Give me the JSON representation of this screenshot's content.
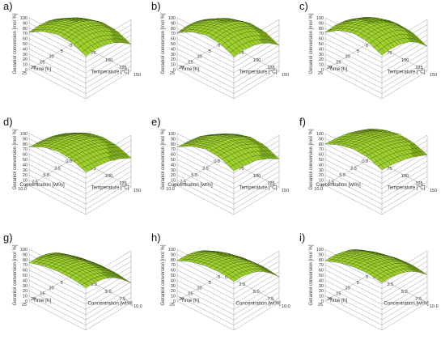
{
  "colors": {
    "surface": "#9ed22b",
    "surface_dark": "#7faf1c",
    "mesh": "#2f3d10",
    "axes": "#888888",
    "text": "#333333"
  },
  "labels": {
    "conversion": "Geraniol conversion [mol %]",
    "time": "Time [h]",
    "temperature": "Temperature [°C]",
    "concentration": "Concentration [wt%]"
  },
  "chart_data": [
    {
      "id": "a)",
      "type": "surface",
      "xlabel": "Temperature [°C]",
      "ylabel": "Time [h]",
      "zlabel": "Geraniol conversion [mol %]",
      "x_ticks": [
        "50",
        "75",
        "100",
        "125",
        "150"
      ],
      "y_ticks": [
        "0",
        "5",
        "10",
        "15",
        "20",
        "25"
      ],
      "z_ticks": [
        "0",
        "10",
        "20",
        "30",
        "40",
        "50",
        "60",
        "70",
        "80",
        "90",
        "100"
      ],
      "xlim": [
        50,
        150
      ],
      "ylim": [
        0,
        25
      ],
      "zlim": [
        0,
        100
      ],
      "z_grid": [
        [
          40,
          58,
          66,
          64,
          52
        ],
        [
          56,
          72,
          80,
          78,
          66
        ],
        [
          66,
          82,
          90,
          88,
          76
        ],
        [
          72,
          88,
          96,
          94,
          82
        ],
        [
          74,
          90,
          98,
          96,
          84
        ],
        [
          72,
          88,
          96,
          94,
          82
        ]
      ]
    },
    {
      "id": "b)",
      "type": "surface",
      "xlabel": "Temperature [°C]",
      "ylabel": "Time [h]",
      "zlabel": "Geraniol conversion [mol %]",
      "x_ticks": [
        "50",
        "75",
        "100",
        "125",
        "150"
      ],
      "y_ticks": [
        "0",
        "5",
        "10",
        "15",
        "20",
        "25"
      ],
      "z_ticks": [
        "0",
        "10",
        "20",
        "30",
        "40",
        "50",
        "60",
        "70",
        "80",
        "90",
        "100"
      ],
      "xlim": [
        50,
        150
      ],
      "ylim": [
        0,
        25
      ],
      "zlim": [
        0,
        100
      ],
      "z_grid": [
        [
          38,
          56,
          64,
          62,
          50
        ],
        [
          55,
          71,
          79,
          77,
          65
        ],
        [
          65,
          81,
          89,
          87,
          75
        ],
        [
          71,
          87,
          95,
          93,
          81
        ],
        [
          73,
          89,
          97,
          95,
          83
        ],
        [
          71,
          87,
          95,
          93,
          81
        ]
      ]
    },
    {
      "id": "c)",
      "type": "surface",
      "xlabel": "Temperature [°C]",
      "ylabel": "Time [h]",
      "zlabel": "Geraniol conversion [mol %]",
      "x_ticks": [
        "50",
        "75",
        "100",
        "125",
        "150"
      ],
      "y_ticks": [
        "0",
        "5",
        "10",
        "15",
        "20",
        "25"
      ],
      "z_ticks": [
        "0",
        "10",
        "20",
        "30",
        "40",
        "50",
        "60",
        "70",
        "80",
        "90",
        "100"
      ],
      "xlim": [
        50,
        150
      ],
      "ylim": [
        0,
        25
      ],
      "zlim": [
        0,
        100
      ],
      "z_grid": [
        [
          36,
          54,
          62,
          60,
          48
        ],
        [
          54,
          72,
          80,
          78,
          66
        ],
        [
          66,
          84,
          92,
          90,
          78
        ],
        [
          72,
          90,
          98,
          96,
          84
        ],
        [
          74,
          92,
          100,
          98,
          86
        ],
        [
          72,
          90,
          98,
          96,
          84
        ]
      ]
    },
    {
      "id": "d)",
      "type": "surface",
      "xlabel": "Temperature [°C]",
      "ylabel": "Concentration [wt%]",
      "zlabel": "Geraniol conversion [mol %]",
      "x_ticks": [
        "50",
        "75",
        "100",
        "125",
        "150"
      ],
      "y_ticks": [
        "0.0",
        "2.5",
        "5.0",
        "7.5",
        "10.0"
      ],
      "z_ticks": [
        "0",
        "10",
        "20",
        "30",
        "40",
        "50",
        "60",
        "70",
        "80",
        "90",
        "100"
      ],
      "xlim": [
        50,
        150
      ],
      "ylim": [
        0,
        10
      ],
      "zlim": [
        0,
        100
      ],
      "z_grid": [
        [
          48,
          62,
          68,
          66,
          56
        ],
        [
          60,
          74,
          80,
          78,
          68
        ],
        [
          68,
          82,
          88,
          86,
          76
        ],
        [
          72,
          86,
          92,
          90,
          80
        ],
        [
          74,
          88,
          94,
          92,
          82
        ]
      ]
    },
    {
      "id": "e)",
      "type": "surface",
      "xlabel": "Temperature [°C]",
      "ylabel": "Concentration [wt%]",
      "zlabel": "Geraniol conversion [mol %]",
      "x_ticks": [
        "50",
        "75",
        "100",
        "125",
        "150"
      ],
      "y_ticks": [
        "0.0",
        "2.5",
        "5.0",
        "7.5",
        "10.0"
      ],
      "z_ticks": [
        "0",
        "10",
        "20",
        "30",
        "40",
        "50",
        "60",
        "70",
        "80",
        "90",
        "100"
      ],
      "xlim": [
        50,
        150
      ],
      "ylim": [
        0,
        10
      ],
      "zlim": [
        0,
        100
      ],
      "z_grid": [
        [
          44,
          60,
          68,
          66,
          54
        ],
        [
          58,
          74,
          82,
          80,
          68
        ],
        [
          68,
          84,
          92,
          90,
          78
        ],
        [
          72,
          88,
          96,
          94,
          82
        ],
        [
          74,
          90,
          98,
          96,
          84
        ]
      ]
    },
    {
      "id": "f)",
      "type": "surface",
      "xlabel": "Temperature [°C]",
      "ylabel": "Concentration [wt%]",
      "zlabel": "Geraniol conversion [mol %]",
      "x_ticks": [
        "50",
        "75",
        "100",
        "125",
        "150"
      ],
      "y_ticks": [
        "0.0",
        "2.5",
        "5.0",
        "7.5",
        "10.0"
      ],
      "z_ticks": [
        "0",
        "10",
        "20",
        "30",
        "40",
        "50",
        "60",
        "70",
        "80",
        "90",
        "100"
      ],
      "xlim": [
        50,
        150
      ],
      "ylim": [
        0,
        10
      ],
      "zlim": [
        0,
        100
      ],
      "z_grid": [
        [
          56,
          68,
          74,
          72,
          62
        ],
        [
          66,
          78,
          84,
          82,
          72
        ],
        [
          74,
          86,
          92,
          90,
          80
        ],
        [
          78,
          90,
          96,
          94,
          84
        ],
        [
          80,
          92,
          98,
          96,
          86
        ]
      ]
    },
    {
      "id": "g)",
      "type": "surface",
      "xlabel": "Concentration [wt%]",
      "ylabel": "Time [h]",
      "zlabel": "Geraniol conversion [mol %]",
      "x_ticks": [
        "0.0",
        "2.5",
        "5.0",
        "7.5",
        "10.0"
      ],
      "y_ticks": [
        "0",
        "5",
        "10",
        "15",
        "20",
        "25"
      ],
      "z_ticks": [
        "0",
        "10",
        "20",
        "30",
        "40",
        "50",
        "60",
        "70",
        "80",
        "90",
        "100"
      ],
      "xlim": [
        0,
        10
      ],
      "ylim": [
        0,
        25
      ],
      "zlim": [
        0,
        100
      ],
      "z_grid": [
        [
          30,
          38,
          42,
          42,
          38
        ],
        [
          48,
          56,
          60,
          60,
          56
        ],
        [
          62,
          70,
          74,
          74,
          70
        ],
        [
          70,
          78,
          82,
          82,
          78
        ],
        [
          74,
          82,
          86,
          86,
          82
        ],
        [
          74,
          82,
          86,
          86,
          82
        ]
      ]
    },
    {
      "id": "h)",
      "type": "surface",
      "xlabel": "Concentration [wt%]",
      "ylabel": "Time [h]",
      "zlabel": "Geraniol conversion [mol %]",
      "x_ticks": [
        "0.0",
        "2.5",
        "5.0",
        "7.5",
        "10.0"
      ],
      "y_ticks": [
        "0",
        "5",
        "10",
        "15",
        "20",
        "25"
      ],
      "z_ticks": [
        "0",
        "10",
        "20",
        "30",
        "40",
        "50",
        "60",
        "70",
        "80",
        "90",
        "100"
      ],
      "xlim": [
        0,
        10
      ],
      "ylim": [
        0,
        25
      ],
      "zlim": [
        0,
        100
      ],
      "z_grid": [
        [
          34,
          46,
          52,
          54,
          50
        ],
        [
          52,
          64,
          70,
          72,
          68
        ],
        [
          66,
          78,
          84,
          86,
          82
        ],
        [
          74,
          86,
          92,
          94,
          90
        ],
        [
          78,
          90,
          96,
          98,
          94
        ],
        [
          78,
          90,
          96,
          98,
          94
        ]
      ]
    },
    {
      "id": "i)",
      "type": "surface",
      "xlabel": "Concentration [wt%]",
      "ylabel": "Time [h]",
      "zlabel": "Geraniol conversion [mol %]",
      "x_ticks": [
        "0.0",
        "2.5",
        "5.0",
        "7.5",
        "10.0"
      ],
      "y_ticks": [
        "0",
        "5",
        "10",
        "15",
        "20",
        "25"
      ],
      "z_ticks": [
        "0",
        "10",
        "20",
        "30",
        "40",
        "50",
        "60",
        "70",
        "80",
        "90",
        "100"
      ],
      "xlim": [
        0,
        10
      ],
      "ylim": [
        0,
        25
      ],
      "zlim": [
        0,
        100
      ],
      "z_grid": [
        [
          40,
          50,
          56,
          58,
          54
        ],
        [
          56,
          66,
          72,
          74,
          70
        ],
        [
          68,
          78,
          84,
          86,
          82
        ],
        [
          74,
          84,
          90,
          92,
          88
        ],
        [
          78,
          88,
          94,
          96,
          92
        ],
        [
          78,
          88,
          94,
          96,
          92
        ]
      ]
    }
  ]
}
